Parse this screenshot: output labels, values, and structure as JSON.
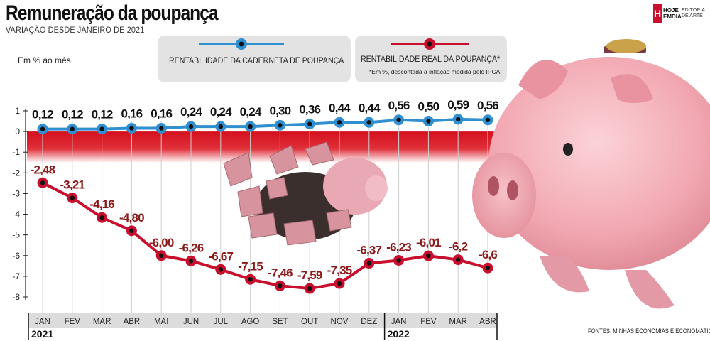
{
  "header": {
    "title": "Remuneração da poupança",
    "subtitle": "VARIAÇÃO DESDE JANEIRO DE 2021"
  },
  "brand": {
    "letter": "H",
    "name": "HOJE EMDIA",
    "editoria": "EDITORIA DE ARTE"
  },
  "source": "FONTES: MINHAS ECONOMIAS E ECONOMÁTICA",
  "colors": {
    "blue_series": "#2f8fd0",
    "red_series": "#c8102e",
    "red_band": "#d4101d",
    "legend_bg": "#e3e3e3",
    "pig_pink": "#f2a8b2"
  },
  "chart_data": {
    "type": "line",
    "ylabel": "Em % ao mês",
    "ylim": [
      -8,
      1
    ],
    "yticks": [
      1,
      0,
      -1,
      -2,
      -3,
      -4,
      -5,
      -6,
      -7,
      -8
    ],
    "categories": [
      "JAN",
      "FEV",
      "MAR",
      "ABR",
      "MAI",
      "JUN",
      "JUL",
      "AGO",
      "SET",
      "OUT",
      "NOV",
      "DEZ",
      "JAN",
      "FEV",
      "MAR",
      "ABR"
    ],
    "years": [
      {
        "label": "2021",
        "start_index": 0
      },
      {
        "label": "2022",
        "start_index": 12
      }
    ],
    "series": [
      {
        "name": "RENTABILIDADE DA CADERNETA DE POUPANÇA",
        "values": [
          0.12,
          0.12,
          0.12,
          0.16,
          0.16,
          0.24,
          0.24,
          0.24,
          0.3,
          0.36,
          0.44,
          0.44,
          0.56,
          0.5,
          0.59,
          0.56
        ],
        "labels": [
          "0,12",
          "0,12",
          "0,12",
          "0,16",
          "0,16",
          "0,24",
          "0,24",
          "0,24",
          "0,30",
          "0,36",
          "0,44",
          "0,44",
          "0,56",
          "0,50",
          "0,59",
          "0,56"
        ],
        "color": "#2f8fd0"
      },
      {
        "name": "RENTABILIDADE REAL DA POUPANÇA*",
        "note": "*Em %, descontada a inflação medida pelo IPCA",
        "values": [
          -2.48,
          -3.21,
          -4.16,
          -4.8,
          -6.0,
          -6.26,
          -6.67,
          -7.15,
          -7.46,
          -7.59,
          -7.35,
          -6.37,
          -6.23,
          -6.01,
          -6.2,
          -6.6
        ],
        "labels": [
          "-2,48",
          "-3,21",
          "-4,16",
          "-4,80",
          "-6,00",
          "-6,26",
          "-6,67",
          "-7,15",
          "-7,46",
          "-7,59",
          "-7,35",
          "-6,37",
          "-6,23",
          "-6,01",
          "-6,2",
          "-6,6"
        ],
        "color": "#c8102e"
      }
    ]
  }
}
